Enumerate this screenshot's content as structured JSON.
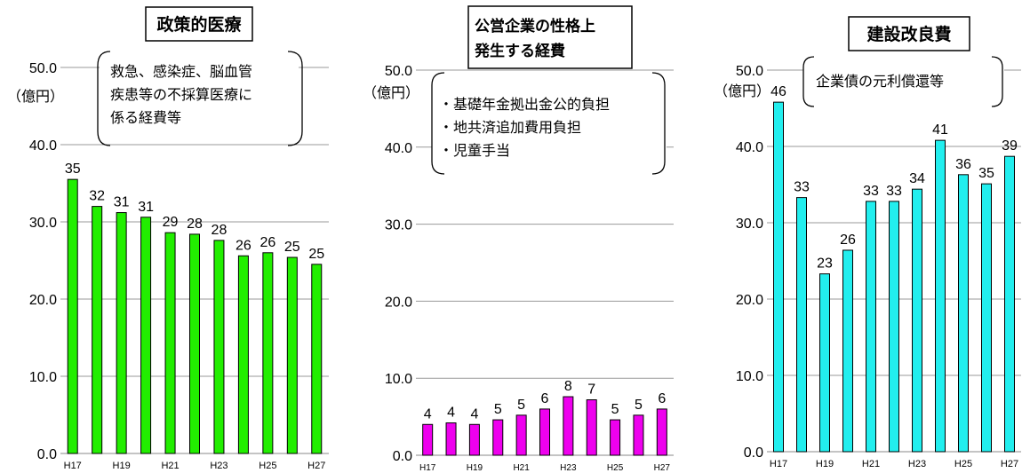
{
  "chart_data": [
    {
      "type": "bar",
      "title": "政策的医療",
      "unit_label": "（億円）",
      "annotation": [
        "救急、感染症、脳血管",
        "疾患等の不採算医療に",
        "係る経費等"
      ],
      "categories": [
        "H17",
        "H18",
        "H19",
        "H20",
        "H21",
        "H22",
        "H23",
        "H24",
        "H25",
        "H26",
        "H27"
      ],
      "x_tick_labels": [
        "H17",
        "",
        "H19",
        "",
        "H21",
        "",
        "H23",
        "",
        "H25",
        "",
        "H27"
      ],
      "values": [
        35.5,
        32.0,
        31.2,
        30.6,
        28.6,
        28.4,
        27.6,
        25.6,
        26.0,
        25.4,
        24.5
      ],
      "data_labels": [
        "35",
        "32",
        "31",
        "31",
        "29",
        "28",
        "28",
        "26",
        "26",
        "25",
        "25"
      ],
      "y_tick_labels": [
        "0.0",
        "10.0",
        "20.0",
        "30.0",
        "40.0",
        "50.0"
      ],
      "ylim": [
        0,
        50
      ],
      "bar_color": "#22ee00",
      "grid": true
    },
    {
      "type": "bar",
      "title_lines": [
        "公営企業の性格上",
        "発生する経費"
      ],
      "unit_label": "（億円）",
      "annotation": [
        "・基礎年金拠出金公的負担",
        "・地共済追加費用負担",
        "・児童手当"
      ],
      "categories": [
        "H17",
        "H18",
        "H19",
        "H20",
        "H21",
        "H22",
        "H23",
        "H24",
        "H25",
        "H26",
        "H27"
      ],
      "x_tick_labels": [
        "H17",
        "",
        "H19",
        "",
        "H21",
        "",
        "H23",
        "",
        "H25",
        "",
        "H27"
      ],
      "values": [
        4.0,
        4.2,
        4.0,
        4.6,
        5.2,
        6.0,
        7.6,
        7.2,
        4.6,
        5.2,
        6.0
      ],
      "data_labels": [
        "4",
        "4",
        "4",
        "5",
        "5",
        "6",
        "8",
        "7",
        "5",
        "5",
        "6"
      ],
      "y_tick_labels": [
        "0.0",
        "10.0",
        "20.0",
        "30.0",
        "40.0",
        "50.0"
      ],
      "ylim": [
        0,
        50
      ],
      "bar_color": "#ee00ee",
      "grid": true
    },
    {
      "type": "bar",
      "title": "建設改良費",
      "unit_label": "（億円）",
      "annotation": [
        "企業債の元利償還等"
      ],
      "categories": [
        "H17",
        "H18",
        "H19",
        "H20",
        "H21",
        "H22",
        "H23",
        "H24",
        "H25",
        "H26",
        "H27"
      ],
      "x_tick_labels": [
        "H17",
        "",
        "H19",
        "",
        "H21",
        "",
        "H23",
        "",
        "H25",
        "",
        "H27"
      ],
      "values": [
        45.8,
        33.3,
        23.3,
        26.4,
        32.8,
        32.8,
        34.4,
        40.8,
        36.3,
        35.1,
        38.7
      ],
      "data_labels": [
        "46",
        "33",
        "23",
        "26",
        "33",
        "33",
        "34",
        "41",
        "36",
        "35",
        "39"
      ],
      "y_tick_labels": [
        "0.0",
        "10.0",
        "20.0",
        "30.0",
        "40.0",
        "50.0"
      ],
      "ylim": [
        0,
        50
      ],
      "bar_color": "#22eeee",
      "grid": true
    }
  ]
}
